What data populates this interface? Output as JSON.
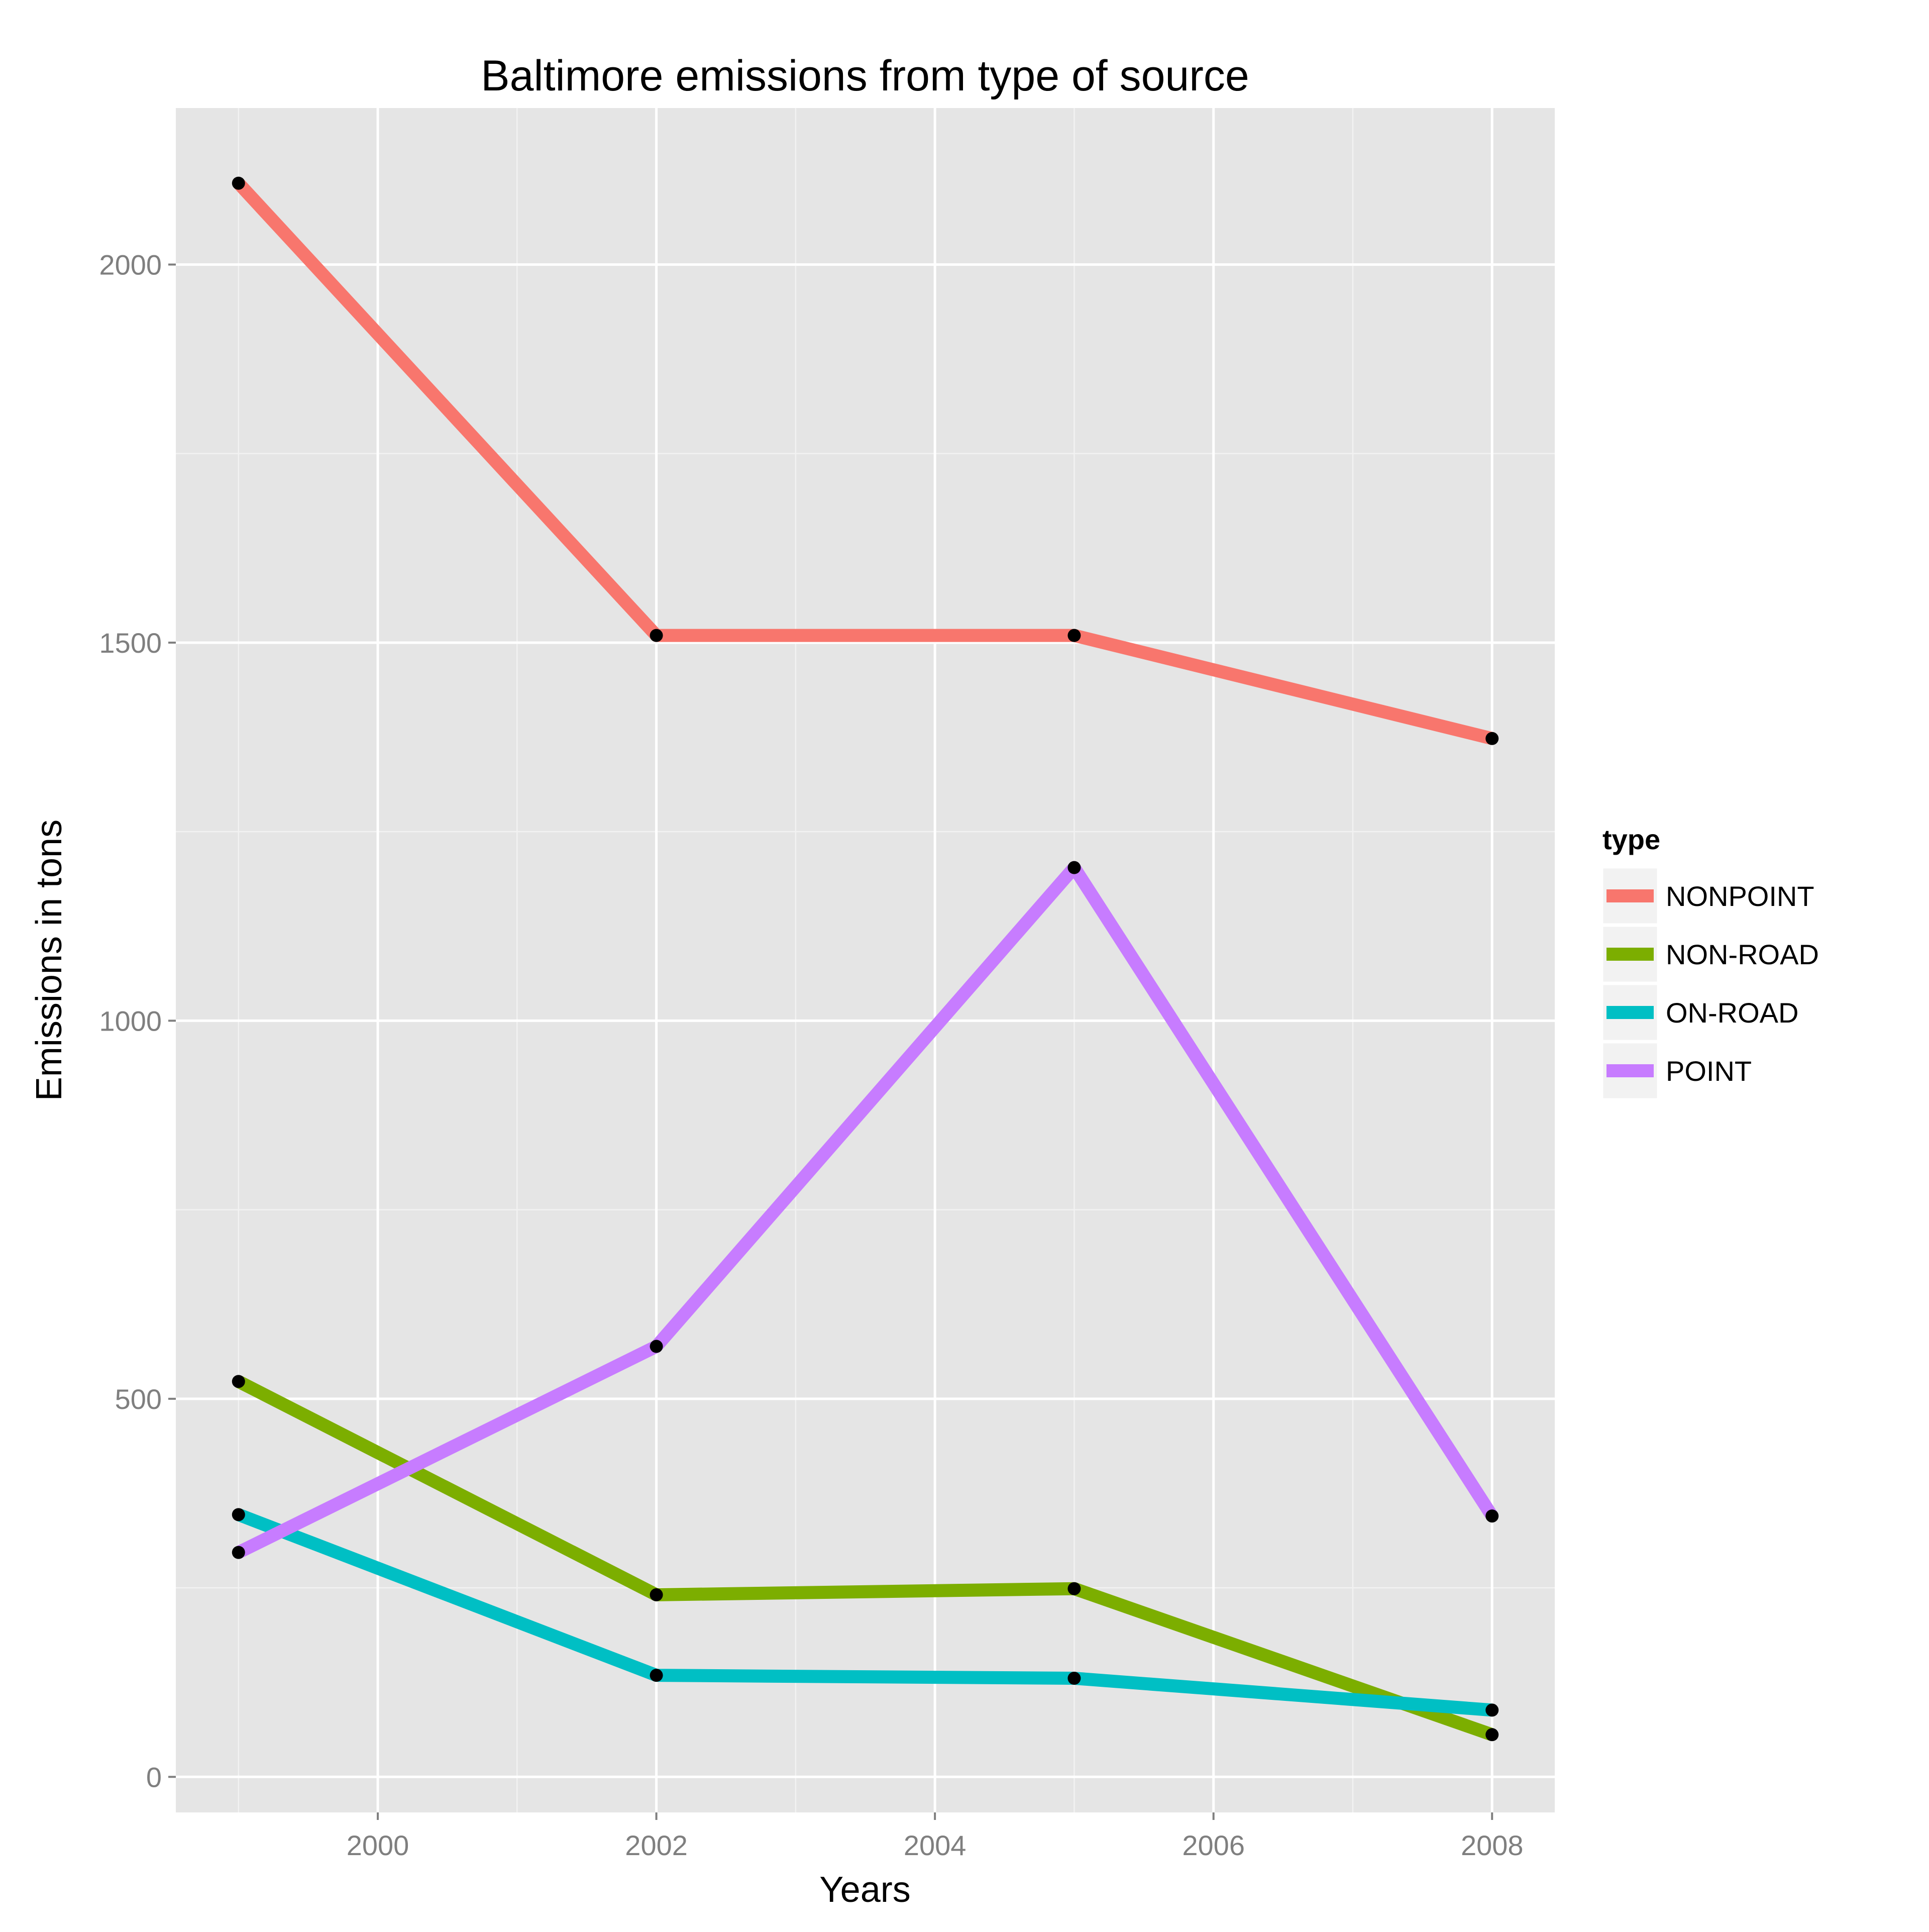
{
  "chart_data": {
    "type": "line",
    "title": "Baltimore emissions from type of source",
    "xlabel": "Years",
    "ylabel": "Emissions in tons",
    "x": [
      1999,
      2002,
      2005,
      2008
    ],
    "xlim": [
      1998.55,
      2008.45
    ],
    "ylim": [
      -47,
      2207
    ],
    "x_ticks": [
      2000,
      2002,
      2004,
      2006,
      2008
    ],
    "x_tick_labels": [
      "2000",
      "2002",
      "2004",
      "2006",
      "2008"
    ],
    "y_ticks": [
      0,
      500,
      1000,
      1500,
      2000
    ],
    "y_tick_labels": [
      "0",
      "500",
      "1000",
      "1500",
      "2000"
    ],
    "grid": true,
    "legend_title": "type",
    "legend_position": "right",
    "series": [
      {
        "name": "NONPOINT",
        "color": "#F8766D",
        "values": [
          2107.6,
          1509.5,
          1509.5,
          1373.2
        ]
      },
      {
        "name": "NON-ROAD",
        "color": "#7CAE00",
        "values": [
          522.9,
          240.8,
          248.9,
          55.8
        ]
      },
      {
        "name": "ON-ROAD",
        "color": "#00BFC4",
        "values": [
          346.8,
          134.3,
          130.4,
          88.3
        ]
      },
      {
        "name": "POINT",
        "color": "#C77CFF",
        "values": [
          296.8,
          569.3,
          1202.5,
          344.98
        ]
      }
    ]
  }
}
